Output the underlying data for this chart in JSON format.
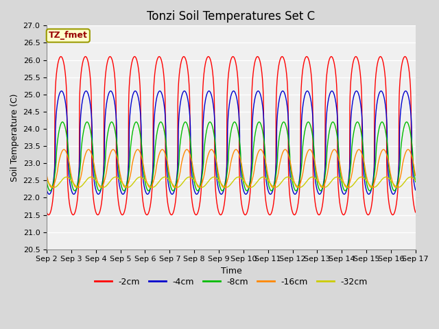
{
  "title": "Tonzi Soil Temperatures Set C",
  "xlabel": "Time",
  "ylabel": "Soil Temperature (C)",
  "legend_label": "TZ_fmet",
  "ylim": [
    20.5,
    27.0
  ],
  "series": {
    "-2cm": {
      "color": "#FF0000",
      "amplitude": 2.3,
      "phase_shift": 0.65,
      "mean": 23.8,
      "sharpness": 3.5,
      "lw": 1.0
    },
    "-4cm": {
      "color": "#0000CC",
      "amplitude": 1.5,
      "phase_shift": 0.7,
      "mean": 23.6,
      "sharpness": 2.5,
      "lw": 1.0
    },
    "-8cm": {
      "color": "#00BB00",
      "amplitude": 1.0,
      "phase_shift": 0.78,
      "mean": 23.2,
      "sharpness": 1.5,
      "lw": 1.0
    },
    "-16cm": {
      "color": "#FF8800",
      "amplitude": 0.55,
      "phase_shift": 0.9,
      "mean": 22.85,
      "sharpness": 1.2,
      "lw": 1.0
    },
    "-32cm": {
      "color": "#CCCC00",
      "amplitude": 0.15,
      "phase_shift": 1.1,
      "mean": 22.45,
      "sharpness": 1.0,
      "lw": 1.0
    }
  },
  "x_ticks": [
    "Sep 2",
    "Sep 3",
    "Sep 4",
    "Sep 5",
    "Sep 6",
    "Sep 7",
    "Sep 8",
    "Sep 9",
    "Sep 10",
    "Sep 11",
    "Sep 12",
    "Sep 13",
    "Sep 14",
    "Sep 15",
    "Sep 16",
    "Sep 17"
  ],
  "bg_color": "#D8D8D8",
  "plot_bg": "#F0F0F0",
  "legend_box_color": "#FFFFCC",
  "legend_box_edge": "#999900",
  "title_fontsize": 12,
  "axis_label_fontsize": 9,
  "tick_fontsize": 8
}
